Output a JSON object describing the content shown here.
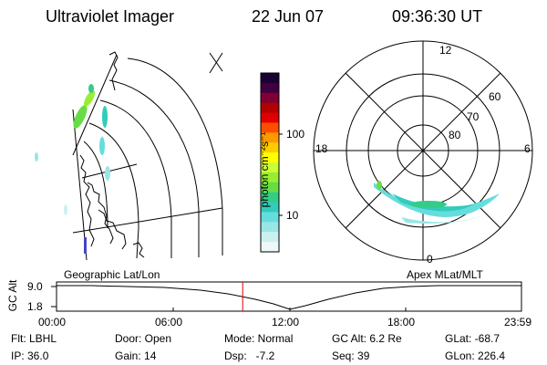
{
  "header": {
    "instrument": "Ultraviolet Imager",
    "date": "22 Jun 07",
    "time": "09:36:30 UT"
  },
  "colorbar": {
    "unit_label": "photon cm⁻²s⁻¹",
    "tick_labels": [
      "100",
      "10"
    ],
    "colors": [
      "#1a0033",
      "#400040",
      "#800033",
      "#b30000",
      "#e00000",
      "#ff4d00",
      "#ff9900",
      "#ffcc00",
      "#ffff00",
      "#ccff33",
      "#99ee33",
      "#66dd44",
      "#33cc88",
      "#33ccbb",
      "#66dddd",
      "#99e6e6",
      "#ccf0f0",
      "#eef8f8"
    ]
  },
  "left_panel": {
    "label": "Geographic Lat/Lon"
  },
  "right_panel": {
    "label": "Apex MLat/MLT",
    "mlt_labels": {
      "top": "12",
      "left": "18",
      "right": "6",
      "bottom": "0"
    },
    "lat_labels": [
      "60",
      "70",
      "80"
    ]
  },
  "altitude_plot": {
    "y_axis_label": "GC Alt",
    "y_ticks": [
      "9.0",
      "1.8"
    ],
    "x_ticks": [
      "00:00",
      "06:00",
      "12:00",
      "18:00",
      "23:59"
    ],
    "current_time_hours": 9.61,
    "marker_color": "#dd0000"
  },
  "footer": {
    "filter": "Flt: LBHL",
    "ip": "IP: 36.0",
    "door": "Door: Open",
    "gain": "Gain: 14",
    "mode": "Mode: Normal",
    "dsp": "Dsp:   -7.2",
    "gc_alt": "GC Alt: 6.2 Re",
    "seq": "Seq: 39",
    "glat": "GLat: -68.7",
    "glon": "GLon: 226.4"
  }
}
